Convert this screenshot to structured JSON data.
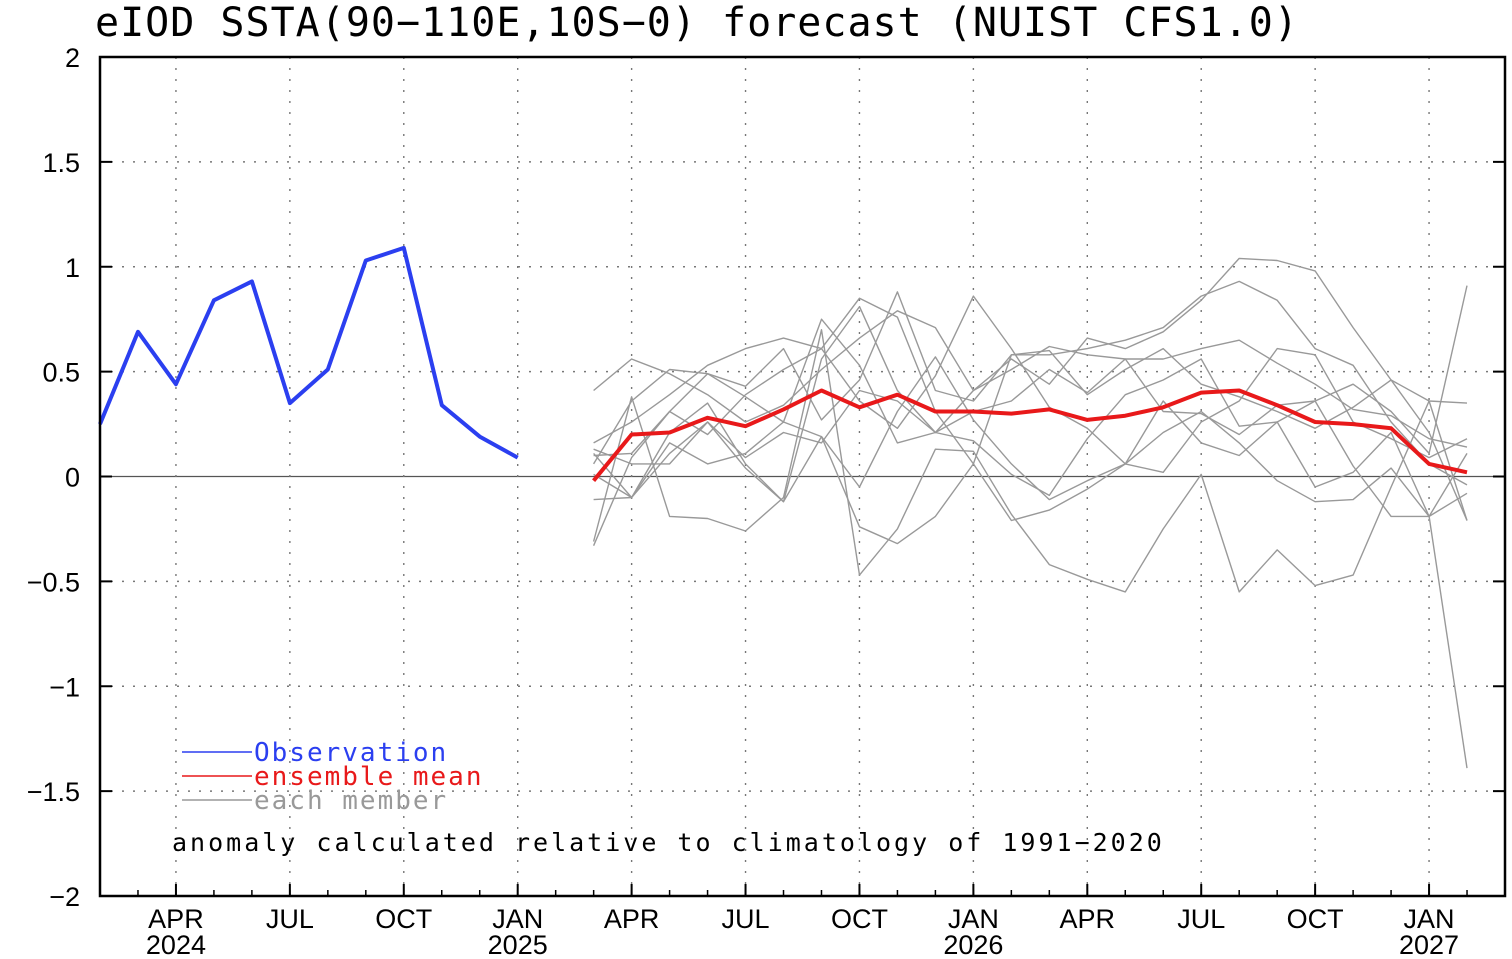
{
  "chart_data": {
    "type": "line",
    "title": "eIOD SSTA(90−110E,10S−0) forecast (NUIST CFS1.0)",
    "ylim": [
      -2,
      2
    ],
    "yticks": [
      "2",
      "1.5",
      "1",
      "0.5",
      "0",
      "−0.5",
      "−1",
      "−1.5",
      "−2"
    ],
    "xlim": [
      "2024-02",
      "2027-03"
    ],
    "xticks": [
      {
        "month": "2024-04",
        "label": "APR",
        "year": "2024"
      },
      {
        "month": "2024-07",
        "label": "JUL",
        "year": ""
      },
      {
        "month": "2024-10",
        "label": "OCT",
        "year": ""
      },
      {
        "month": "2025-01",
        "label": "JAN",
        "year": "2025"
      },
      {
        "month": "2025-04",
        "label": "APR",
        "year": ""
      },
      {
        "month": "2025-07",
        "label": "JUL",
        "year": ""
      },
      {
        "month": "2025-10",
        "label": "OCT",
        "year": ""
      },
      {
        "month": "2026-01",
        "label": "JAN",
        "year": "2026"
      },
      {
        "month": "2026-04",
        "label": "APR",
        "year": ""
      },
      {
        "month": "2026-07",
        "label": "JUL",
        "year": ""
      },
      {
        "month": "2026-10",
        "label": "OCT",
        "year": ""
      },
      {
        "month": "2027-01",
        "label": "JAN",
        "year": "2027"
      }
    ],
    "grid": true,
    "legend_position": "lower-left",
    "legend": [
      {
        "label": "Observation",
        "color": "#2b3ff0"
      },
      {
        "label": "ensemble mean",
        "color": "#e8191a"
      },
      {
        "label": "each member",
        "color": "#999999"
      }
    ],
    "annotation": "anomaly calculated relative to climatology of 1991−2020",
    "observation": {
      "start": "2024-02",
      "values": [
        0.25,
        0.69,
        0.44,
        0.84,
        0.93,
        0.35,
        0.51,
        1.03,
        1.09,
        0.34,
        0.19,
        0.09
      ]
    },
    "forecast_start": "2025-03",
    "ensemble_mean": [
      -0.02,
      0.2,
      0.21,
      0.28,
      0.24,
      0.32,
      0.41,
      0.33,
      0.39,
      0.31,
      0.31,
      0.3,
      0.32,
      0.27,
      0.29,
      0.33,
      0.4,
      0.41,
      0.34,
      0.26,
      0.25,
      0.23,
      0.06,
      0.02
    ],
    "members": [
      [
        0.41,
        0.56,
        0.49,
        0.39,
        0.26,
        0.34,
        0.51,
        0.66,
        0.79,
        0.71,
        0.41,
        0.51,
        0.62,
        0.58,
        0.56,
        0.56,
        0.61,
        0.65,
        0.54,
        0.44,
        0.32,
        0.29,
        0.18,
        0.14
      ],
      [
        0.16,
        0.26,
        0.39,
        0.53,
        0.61,
        0.66,
        0.61,
        0.85,
        0.76,
        0.31,
        0.06,
        0.58,
        0.6,
        0.39,
        0.51,
        0.61,
        0.44,
        0.38,
        0.31,
        0.23,
        0.33,
        0.46,
        0.36,
        0.35
      ],
      [
        -0.33,
        0.09,
        0.31,
        0.49,
        0.38,
        0.26,
        0.75,
        0.53,
        0.16,
        0.21,
        0.41,
        0.56,
        0.44,
        0.66,
        0.61,
        0.69,
        0.84,
        1.04,
        1.03,
        0.98,
        0.71,
        0.46,
        0.21,
        -0.21
      ],
      [
        0.06,
        0.36,
        0.51,
        0.49,
        0.43,
        0.61,
        0.27,
        0.46,
        0.88,
        0.41,
        0.36,
        0.58,
        0.58,
        0.61,
        0.65,
        0.71,
        0.86,
        0.93,
        0.84,
        0.61,
        0.53,
        0.26,
        0.06,
        -0.04
      ],
      [
        0.1,
        0.11,
        0.31,
        0.2,
        0.39,
        0.51,
        0.61,
        0.36,
        0.23,
        0.48,
        0.86,
        0.61,
        0.33,
        0.23,
        0.06,
        0.02,
        0.26,
        0.36,
        0.61,
        0.58,
        0.26,
        0.18,
        0.09,
        0.18
      ],
      [
        -0.31,
        0.38,
        -0.19,
        -0.2,
        -0.26,
        -0.1,
        0.7,
        -0.47,
        -0.25,
        0.13,
        0.12,
        -0.18,
        -0.42,
        -0.49,
        -0.55,
        -0.25,
        0.01,
        -0.55,
        -0.35,
        -0.52,
        -0.47,
        -0.05,
        0.36,
        -0.21
      ],
      [
        0.01,
        -0.1,
        0.16,
        0.06,
        0.11,
        0.26,
        0.19,
        -0.24,
        -0.32,
        -0.19,
        0.06,
        -0.21,
        -0.16,
        -0.06,
        0.06,
        0.21,
        0.31,
        0.16,
        -0.02,
        -0.12,
        -0.11,
        0.04,
        -0.19,
        0.11
      ],
      [
        0.11,
        -0.1,
        0.11,
        0.26,
        0.04,
        -0.12,
        0.56,
        0.81,
        0.41,
        0.21,
        0.17,
        0.01,
        -0.09,
        0.18,
        0.39,
        0.46,
        0.56,
        0.24,
        0.26,
        -0.05,
        0.02,
        0.21,
        -0.19,
        -0.08
      ],
      [
        -0.11,
        -0.1,
        0.21,
        0.35,
        0.06,
        -0.12,
        0.19,
        -0.05,
        0.31,
        0.57,
        0.27,
        0.06,
        -0.11,
        -0.02,
        0.06,
        0.36,
        0.16,
        0.1,
        0.26,
        0.36,
        0.05,
        -0.19,
        -0.19,
        -1.39
      ],
      [
        0.13,
        0.06,
        0.06,
        0.26,
        0.09,
        0.21,
        0.16,
        0.41,
        0.36,
        0.21,
        0.31,
        0.36,
        0.51,
        0.4,
        0.56,
        0.31,
        0.3,
        0.2,
        0.34,
        0.36,
        0.44,
        0.31,
        0.11,
        0.91
      ]
    ]
  }
}
